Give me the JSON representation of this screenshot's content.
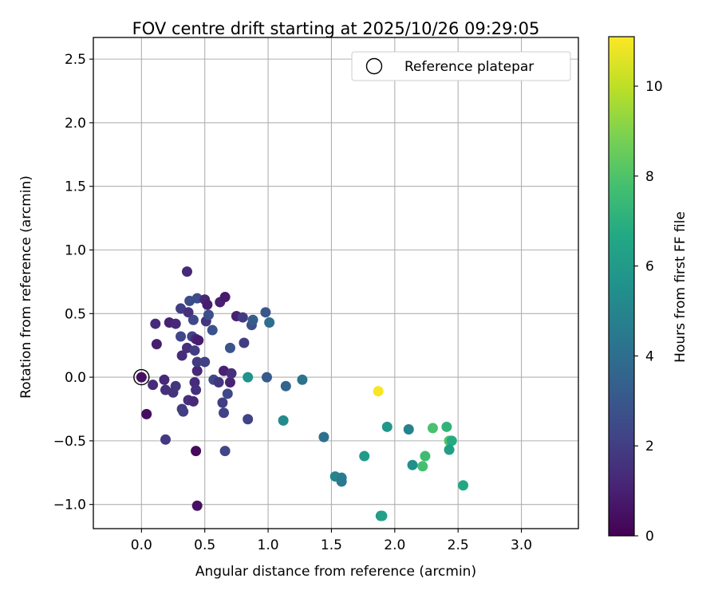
{
  "chart_data": {
    "type": "scatter",
    "title": "FOV centre drift starting at 2025/10/26 09:29:05",
    "xlabel": "Angular distance from reference (arcmin)",
    "ylabel": "Rotation from reference (arcmin)",
    "xlim": [
      -0.38,
      3.45
    ],
    "ylim": [
      -1.19,
      2.67
    ],
    "xticks": [
      0.0,
      0.5,
      1.0,
      1.5,
      2.0,
      2.5,
      3.0
    ],
    "xtick_labels": [
      "0.0",
      "0.5",
      "1.0",
      "1.5",
      "2.0",
      "2.5",
      "3.0"
    ],
    "yticks": [
      -1.0,
      -0.5,
      0.0,
      0.5,
      1.0,
      1.5,
      2.0,
      2.5
    ],
    "ytick_labels": [
      "−1.0",
      "−0.5",
      "0.0",
      "0.5",
      "1.0",
      "1.5",
      "2.0",
      "2.5"
    ],
    "grid": true,
    "legend": {
      "position": "top-right",
      "entries": [
        "Reference platepar"
      ]
    },
    "reference_point": {
      "x": 0.0,
      "y": 0.0
    },
    "colorbar": {
      "label": "Hours from first FF file",
      "range": [
        0,
        11.1
      ],
      "ticks": [
        0,
        2,
        4,
        6,
        8,
        10
      ],
      "tick_labels": [
        "0",
        "2",
        "4",
        "6",
        "8",
        "10"
      ],
      "colormap": "viridis"
    },
    "points": [
      {
        "x": 0.36,
        "y": 0.83,
        "h": 1.3
      },
      {
        "x": 0.11,
        "y": 0.42,
        "h": 1.4
      },
      {
        "x": 0.12,
        "y": 0.26,
        "h": 0.9
      },
      {
        "x": 0.04,
        "y": -0.29,
        "h": 0.4
      },
      {
        "x": 0.43,
        "y": -0.58,
        "h": 0.3
      },
      {
        "x": 0.44,
        "y": -1.01,
        "h": 0.5
      },
      {
        "x": 0.19,
        "y": -0.49,
        "h": 1.8
      },
      {
        "x": 0.0,
        "y": 0.0,
        "h": 0.5
      },
      {
        "x": 0.09,
        "y": -0.06,
        "h": 1.4
      },
      {
        "x": 0.18,
        "y": -0.02,
        "h": 1.3
      },
      {
        "x": 0.19,
        "y": -0.1,
        "h": 1.5
      },
      {
        "x": 0.25,
        "y": -0.12,
        "h": 1.6
      },
      {
        "x": 0.27,
        "y": -0.07,
        "h": 1.7
      },
      {
        "x": 0.32,
        "y": -0.25,
        "h": 1.8
      },
      {
        "x": 0.33,
        "y": -0.27,
        "h": 2.0
      },
      {
        "x": 0.37,
        "y": -0.18,
        "h": 1.5
      },
      {
        "x": 0.41,
        "y": -0.19,
        "h": 1.3
      },
      {
        "x": 0.42,
        "y": -0.04,
        "h": 1.4
      },
      {
        "x": 0.43,
        "y": -0.1,
        "h": 1.6
      },
      {
        "x": 0.44,
        "y": 0.05,
        "h": 1.2
      },
      {
        "x": 0.44,
        "y": 0.12,
        "h": 1.9
      },
      {
        "x": 0.5,
        "y": 0.12,
        "h": 2.1
      },
      {
        "x": 0.57,
        "y": -0.02,
        "h": 2.4
      },
      {
        "x": 0.61,
        "y": -0.04,
        "h": 1.7
      },
      {
        "x": 0.64,
        "y": -0.2,
        "h": 2.0
      },
      {
        "x": 0.65,
        "y": -0.28,
        "h": 2.2
      },
      {
        "x": 0.66,
        "y": -0.58,
        "h": 2.3
      },
      {
        "x": 0.68,
        "y": -0.13,
        "h": 2.4
      },
      {
        "x": 0.7,
        "y": -0.04,
        "h": 1.1
      },
      {
        "x": 0.65,
        "y": 0.05,
        "h": 1.0
      },
      {
        "x": 0.71,
        "y": 0.03,
        "h": 1.5
      },
      {
        "x": 0.22,
        "y": 0.43,
        "h": 1.0
      },
      {
        "x": 0.27,
        "y": 0.42,
        "h": 1.3
      },
      {
        "x": 0.31,
        "y": 0.54,
        "h": 2.0
      },
      {
        "x": 0.31,
        "y": 0.32,
        "h": 2.3
      },
      {
        "x": 0.32,
        "y": 0.17,
        "h": 1.4
      },
      {
        "x": 0.36,
        "y": 0.23,
        "h": 1.5
      },
      {
        "x": 0.37,
        "y": 0.51,
        "h": 1.6
      },
      {
        "x": 0.38,
        "y": 0.6,
        "h": 2.6
      },
      {
        "x": 0.4,
        "y": 0.32,
        "h": 2.2
      },
      {
        "x": 0.41,
        "y": 0.45,
        "h": 2.4
      },
      {
        "x": 0.42,
        "y": 0.21,
        "h": 2.0
      },
      {
        "x": 0.43,
        "y": 0.3,
        "h": 1.3
      },
      {
        "x": 0.45,
        "y": 0.29,
        "h": 0.9
      },
      {
        "x": 0.44,
        "y": 0.62,
        "h": 2.6
      },
      {
        "x": 0.5,
        "y": 0.61,
        "h": 1.2
      },
      {
        "x": 0.51,
        "y": 0.44,
        "h": 1.7
      },
      {
        "x": 0.53,
        "y": 0.49,
        "h": 2.7
      },
      {
        "x": 0.52,
        "y": 0.57,
        "h": 0.9
      },
      {
        "x": 0.56,
        "y": 0.37,
        "h": 2.8
      },
      {
        "x": 0.62,
        "y": 0.59,
        "h": 1.0
      },
      {
        "x": 0.66,
        "y": 0.63,
        "h": 0.8
      },
      {
        "x": 0.7,
        "y": 0.23,
        "h": 2.9
      },
      {
        "x": 0.75,
        "y": 0.48,
        "h": 1.0
      },
      {
        "x": 0.8,
        "y": 0.47,
        "h": 1.9
      },
      {
        "x": 0.81,
        "y": 0.27,
        "h": 2.0
      },
      {
        "x": 0.87,
        "y": 0.41,
        "h": 2.7
      },
      {
        "x": 0.88,
        "y": 0.45,
        "h": 3.2
      },
      {
        "x": 0.84,
        "y": -0.33,
        "h": 2.2
      },
      {
        "x": 0.84,
        "y": 0.0,
        "h": 5.6
      },
      {
        "x": 0.98,
        "y": 0.51,
        "h": 3.0
      },
      {
        "x": 0.99,
        "y": 0.0,
        "h": 3.1
      },
      {
        "x": 1.01,
        "y": 0.43,
        "h": 4.0
      },
      {
        "x": 1.12,
        "y": -0.34,
        "h": 5.3
      },
      {
        "x": 1.14,
        "y": -0.07,
        "h": 3.6
      },
      {
        "x": 1.27,
        "y": -0.02,
        "h": 4.2
      },
      {
        "x": 1.44,
        "y": -0.47,
        "h": 4.1
      },
      {
        "x": 1.53,
        "y": -0.78,
        "h": 5.0
      },
      {
        "x": 1.58,
        "y": -0.79,
        "h": 4.7
      },
      {
        "x": 1.58,
        "y": -0.82,
        "h": 4.5
      },
      {
        "x": 1.76,
        "y": -0.62,
        "h": 6.0
      },
      {
        "x": 1.87,
        "y": -0.11,
        "h": 11.0
      },
      {
        "x": 1.89,
        "y": -1.09,
        "h": 5.6
      },
      {
        "x": 1.9,
        "y": -1.09,
        "h": 6.3
      },
      {
        "x": 1.94,
        "y": -0.39,
        "h": 5.8
      },
      {
        "x": 2.11,
        "y": -0.41,
        "h": 4.9
      },
      {
        "x": 2.14,
        "y": -0.69,
        "h": 5.5
      },
      {
        "x": 2.22,
        "y": -0.7,
        "h": 7.8
      },
      {
        "x": 2.24,
        "y": -0.62,
        "h": 7.6
      },
      {
        "x": 2.3,
        "y": -0.4,
        "h": 7.9
      },
      {
        "x": 2.41,
        "y": -0.39,
        "h": 7.2
      },
      {
        "x": 2.43,
        "y": -0.5,
        "h": 8.0
      },
      {
        "x": 2.45,
        "y": -0.5,
        "h": 6.8
      },
      {
        "x": 2.43,
        "y": -0.57,
        "h": 6.2
      },
      {
        "x": 2.54,
        "y": -0.85,
        "h": 6.6
      }
    ]
  }
}
